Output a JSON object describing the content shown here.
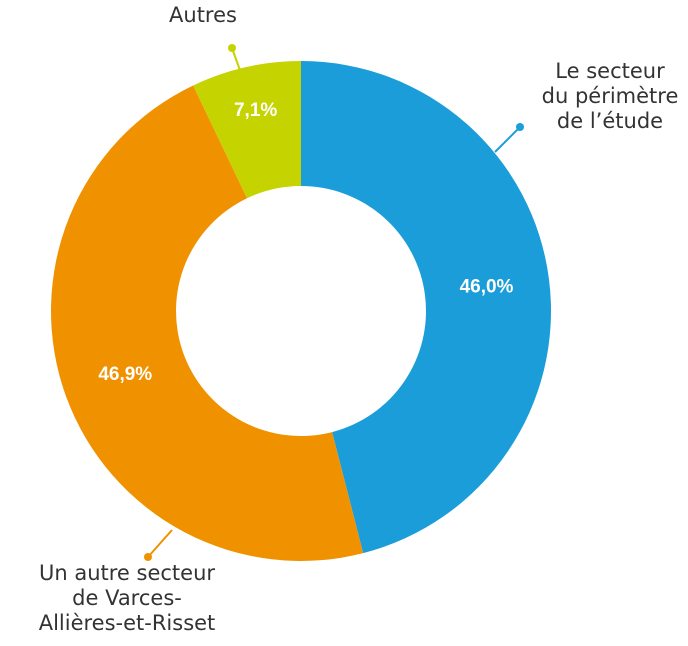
{
  "chart_data": {
    "type": "donut",
    "categories": [
      "Le secteur\ndu périmètre\nde l’étude",
      "Un autre secteur\nde Varces-\nAllières-et-Risset",
      "Autres"
    ],
    "values": [
      46.0,
      46.9,
      7.1
    ],
    "value_labels": [
      "46,0%",
      "46,9%",
      "7,1%"
    ],
    "colors": [
      "#1b9dd9",
      "#f09100",
      "#c5d300"
    ]
  }
}
